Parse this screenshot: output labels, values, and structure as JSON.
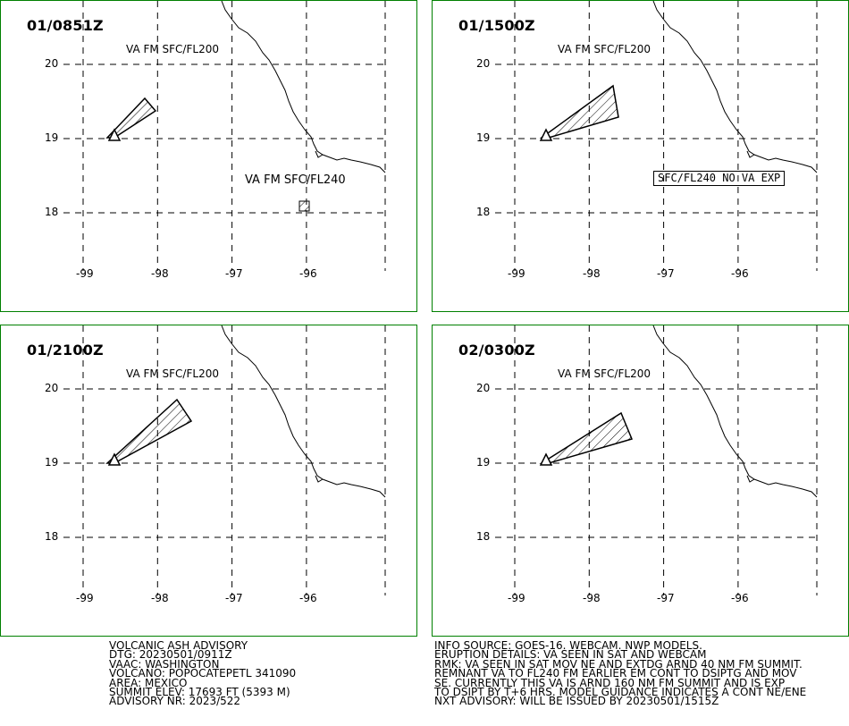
{
  "panels": [
    {
      "time": "01/0851Z",
      "label": "VA FM SFC/FL200",
      "label2": "VA FM SFC/FL240",
      "note": ""
    },
    {
      "time": "01/1500Z",
      "label": "VA FM SFC/FL200",
      "label2": "",
      "note": "SFC/FL240 NO VA EXP"
    },
    {
      "time": "01/2100Z",
      "label": "VA FM SFC/FL200",
      "label2": "",
      "note": ""
    },
    {
      "time": "02/0300Z",
      "label": "VA FM SFC/FL200",
      "label2": "",
      "note": ""
    }
  ],
  "axes": {
    "lat_labels": [
      "20",
      "19",
      "18"
    ],
    "lon_labels": [
      "-99",
      "-98",
      "-97",
      "-96"
    ]
  },
  "advisory_left": [
    "VOLCANIC ASH ADVISORY",
    "DTG: 20230501/0911Z",
    "VAAC: WASHINGTON",
    "VOLCANO: POPOCATEPETL 341090",
    "AREA: MEXICO",
    "SUMMIT ELEV: 17693 FT (5393 M)",
    "ADVISORY NR: 2023/522"
  ],
  "advisory_right": [
    "INFO SOURCE: GOES-16. WEBCAM. NWP MODELS.",
    "ERUPTION DETAILS: VA SEEN IN SAT AND WEBCAM",
    "RMK: VA SEEN IN SAT MOV NE AND EXTDG ARND 40 NM FM SUMMIT.",
    "REMNANT VA TO FL240 FM EARLIER EM CONT TO DSIPTG AND MOV",
    "SE. CURRENTLY THIS VA IS ARND 160 NM FM SUMMIT AND IS EXP",
    "TO DSIPT BY T+6 HRS. MODEL GUIDANCE INDICATES A CONT NE/ENE",
    "NXT ADVISORY: WILL BE ISSUED BY 20230501/1515Z"
  ],
  "colors": {
    "panel_border": "#008000",
    "lines": "#000000"
  }
}
